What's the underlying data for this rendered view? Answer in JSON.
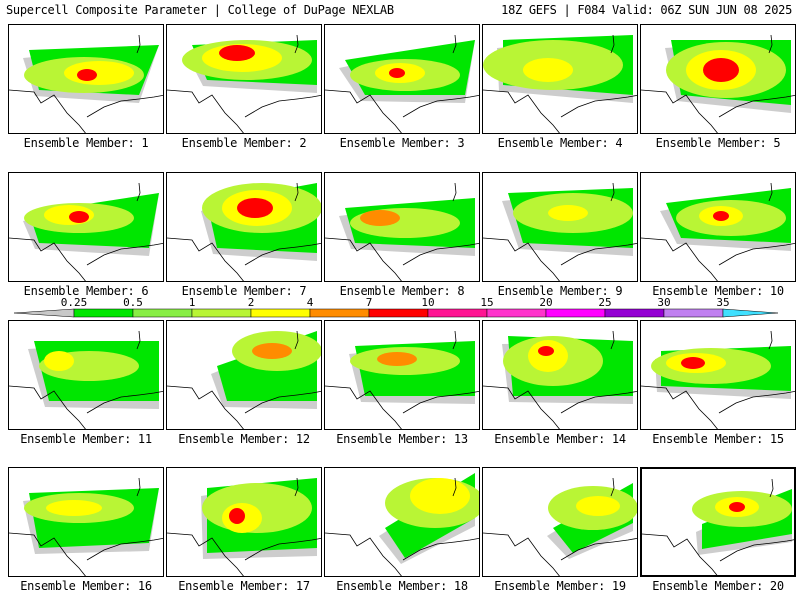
{
  "header": {
    "left_title": "Supercell Composite Parameter | College of DuPage NEXLAB",
    "right_title": "18Z GEFS | F084 Valid: 06Z SUN JUN 08 2025"
  },
  "legend": {
    "thresholds": [
      "0.25",
      "0.5",
      "1",
      "2",
      "4",
      "7",
      "10",
      "15",
      "20",
      "25",
      "30",
      "35"
    ],
    "colors": [
      "#c8c8c8",
      "#00e600",
      "#88ee44",
      "#b9f535",
      "#ffff00",
      "#ff8c00",
      "#ff0000",
      "#ff1493",
      "#ff33cc",
      "#ff00ff",
      "#9400d3",
      "#c080f0",
      "#40e0ff"
    ]
  },
  "members": [
    {
      "label": "Ensemble Member: 1"
    },
    {
      "label": "Ensemble Member: 2"
    },
    {
      "label": "Ensemble Member: 3"
    },
    {
      "label": "Ensemble Member: 4"
    },
    {
      "label": "Ensemble Member: 5"
    },
    {
      "label": "Ensemble Member: 6"
    },
    {
      "label": "Ensemble Member: 7"
    },
    {
      "label": "Ensemble Member: 8"
    },
    {
      "label": "Ensemble Member: 9"
    },
    {
      "label": "Ensemble Member: 10"
    },
    {
      "label": "Ensemble Member: 11"
    },
    {
      "label": "Ensemble Member: 12"
    },
    {
      "label": "Ensemble Member: 13"
    },
    {
      "label": "Ensemble Member: 14"
    },
    {
      "label": "Ensemble Member: 15"
    },
    {
      "label": "Ensemble Member: 16"
    },
    {
      "label": "Ensemble Member: 17"
    },
    {
      "label": "Ensemble Member: 18"
    },
    {
      "label": "Ensemble Member: 19"
    },
    {
      "label": "Ensemble Member: 20",
      "selected": true
    }
  ]
}
